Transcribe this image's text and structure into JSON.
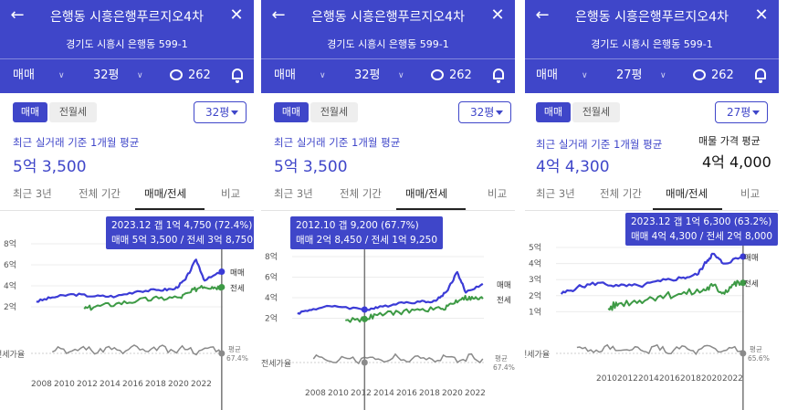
{
  "panels": [
    {
      "title": "은행동 시흥은행푸르지오4차",
      "address": "경기도 시흥시 은행동 599-1",
      "toolbar": {
        "trade": "매매",
        "area": "32평",
        "comments": "262"
      },
      "segments": [
        "매매",
        "전월세"
      ],
      "area_select": "32평",
      "avg_label": "최근 실거래 기준 1개월 평균",
      "avg_value": "5억 3,500",
      "tabs": [
        "최근 3년",
        "전체 기간",
        "매매/전세",
        "비교"
      ],
      "tooltip_line1": "2023.12  갭 1억 4,750 (72.4%)",
      "tooltip_line2": "매매 5억 3,500 / 전세 3억 8,750",
      "sale_label": "매매",
      "jeonse_label": "전세",
      "ratio_axis_label": "전세가율",
      "avg_small": "평균",
      "avg_ratio": "67.4%"
    },
    {
      "title": "은행동 시흥은행푸르지오4차",
      "address": "경기도 시흥시 은행동 599-1",
      "toolbar": {
        "trade": "매매",
        "area": "32평",
        "comments": "262"
      },
      "segments": [
        "매매",
        "전월세"
      ],
      "area_select": "32평",
      "avg_label": "최근 실거래 기준 1개월 평균",
      "avg_value": "5억 3,500",
      "tabs": [
        "최근 3년",
        "전체 기간",
        "매매/전세",
        "비교"
      ],
      "tooltip_line1": "2012.10  갭 9,200 (67.7%)",
      "tooltip_line2": "매매 2억 8,450 / 전세 1억 9,250",
      "sale_label": "매매",
      "jeonse_label": "전세",
      "ratio_axis_label": "전세가율",
      "avg_small": "평균",
      "avg_ratio": "67.4%"
    },
    {
      "title": "은행동 시흥은행푸르지오4차",
      "address": "경기도 시흥시 은행동 599-1",
      "toolbar": {
        "trade": "매매",
        "area": "27평",
        "comments": "262"
      },
      "segments": [
        "매매",
        "전월세"
      ],
      "area_select": "27평",
      "avg_label": "최근 실거래 기준 1개월 평균",
      "avg_value": "4억 4,300",
      "listing_label": "매물 가격 평균",
      "listing_value": "4억 4,000",
      "tabs": [
        "최근 3년",
        "전체 기간",
        "매매/전세",
        "비교"
      ],
      "tooltip_line1": "2023.12  갭 1억 6,300 (63.2%)",
      "tooltip_line2": "매매 4억 4,300 / 전세 2억 8,000",
      "sale_label": "매매",
      "jeonse_label": "전세",
      "ratio_axis_label": "전세가율",
      "avg_small": "평균",
      "avg_ratio": "65.6%"
    }
  ],
  "colors": {
    "accent": "#3f46c9",
    "sale": "#3b3bd6",
    "jeonse": "#3d9a45",
    "ratio": "#8a8a8a"
  },
  "chart_data": [
    {
      "type": "line",
      "x_ticks": [
        "2008",
        "2010",
        "2012",
        "2014",
        "2016",
        "2018",
        "2020",
        "2022"
      ],
      "y_ticks": [
        "2억",
        "4억",
        "6억",
        "8억"
      ],
      "ylim": [
        0,
        8
      ],
      "series": [
        {
          "name": "매매",
          "x": [
            2006.5,
            2008,
            2010,
            2012,
            2014,
            2016,
            2018,
            2019.5,
            2020.5,
            2021.5,
            2022.3,
            2023.9
          ],
          "values": [
            2.5,
            2.9,
            3.2,
            3.0,
            3.0,
            3.5,
            3.6,
            3.7,
            4.6,
            6.5,
            4.5,
            5.35
          ]
        },
        {
          "name": "전세",
          "x": [
            2011,
            2012,
            2014,
            2016,
            2018,
            2020,
            2021,
            2022,
            2023,
            2023.9
          ],
          "values": [
            1.8,
            2.0,
            2.3,
            2.6,
            2.8,
            2.9,
            3.4,
            4.0,
            3.9,
            3.875
          ]
        }
      ]
    },
    {
      "type": "line",
      "x_ticks": [
        "2008",
        "2010",
        "2012",
        "2014",
        "2016",
        "2018",
        "2020",
        "2022"
      ],
      "y_ticks": [
        "2억",
        "4억",
        "6억",
        "8억"
      ],
      "ylim": [
        0,
        8
      ],
      "series": [
        {
          "name": "매매",
          "x": [
            2006.5,
            2008,
            2010,
            2012.8,
            2014,
            2016,
            2018,
            2019.5,
            2020.5,
            2021.5,
            2022.3,
            2023.9
          ],
          "values": [
            2.5,
            2.9,
            3.2,
            2.845,
            3.0,
            3.5,
            3.6,
            3.7,
            4.6,
            6.5,
            4.5,
            5.35
          ]
        },
        {
          "name": "전세",
          "x": [
            2011,
            2012.8,
            2014,
            2016,
            2018,
            2020,
            2021,
            2022,
            2023,
            2023.9
          ],
          "values": [
            1.8,
            1.925,
            2.3,
            2.6,
            2.8,
            2.9,
            3.4,
            4.0,
            3.9,
            3.875
          ]
        }
      ]
    },
    {
      "type": "line",
      "x_ticks": [
        "2010",
        "2012",
        "2014",
        "2016",
        "2018",
        "2020",
        "2022"
      ],
      "y_ticks": [
        "1억",
        "2억",
        "3억",
        "4억",
        "5억"
      ],
      "ylim": [
        0,
        5
      ],
      "series": [
        {
          "name": "매매",
          "x": [
            2006.5,
            2008,
            2010,
            2012,
            2014,
            2016,
            2018,
            2019.5,
            2020.5,
            2021,
            2022,
            2023.9
          ],
          "values": [
            2.1,
            2.5,
            2.8,
            2.6,
            2.6,
            2.9,
            3.1,
            3.3,
            4.2,
            4.6,
            4.0,
            4.43
          ]
        },
        {
          "name": "전세",
          "x": [
            2011,
            2012,
            2014,
            2016,
            2018,
            2020,
            2021,
            2022,
            2023,
            2023.9
          ],
          "values": [
            1.2,
            1.5,
            1.7,
            2.0,
            2.1,
            2.3,
            2.6,
            2.2,
            2.7,
            2.8
          ]
        }
      ]
    }
  ]
}
